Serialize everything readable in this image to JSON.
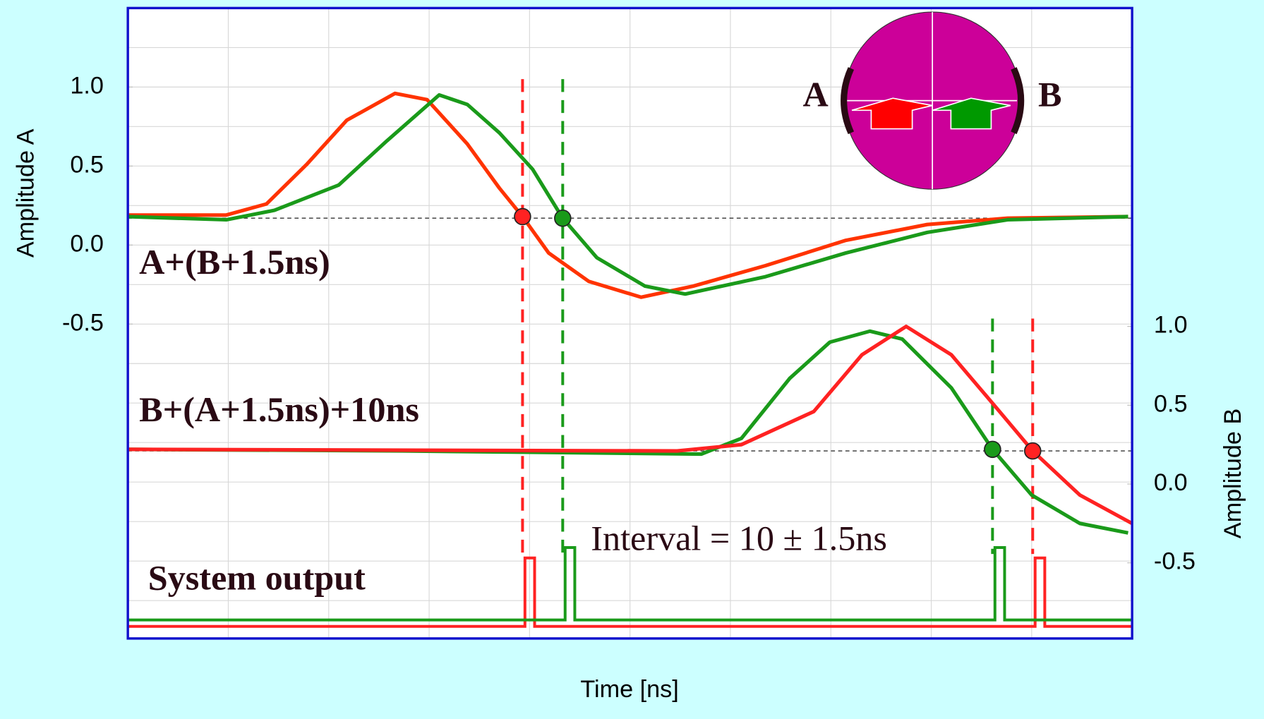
{
  "chart_data": {
    "type": "line",
    "xlabel": "Time [ns]",
    "ylabel": "Amplitude A",
    "y2label": "Amplitude B",
    "xlim": [
      0,
      10
    ],
    "ylim": [
      -2.49,
      1.5
    ],
    "yticks": [
      {
        "value": 1,
        "label": "1.0"
      },
      0.5,
      {
        "value": 0,
        "label": "0.0"
      },
      -0.5
    ],
    "y2lim": [
      -0.98,
      3.02
    ],
    "y2ticks": [
      {
        "value": 1,
        "label": "1.0"
      },
      0.5,
      {
        "value": 0,
        "label": "0.0"
      },
      -0.5
    ],
    "grid": true,
    "series": [
      {
        "color": "#ff3300",
        "x": [
          0,
          0.98,
          1.38,
          1.78,
          2.18,
          2.66,
          2.98,
          3.38,
          3.7,
          3.93,
          4.19,
          4.59,
          5.11,
          5.63,
          6.35,
          7.15,
          7.96,
          8.76,
          9.96
        ],
        "values": [
          0.19,
          0.19,
          0.26,
          0.51,
          0.79,
          0.96,
          0.92,
          0.64,
          0.36,
          0.18,
          -0.05,
          -0.23,
          -0.33,
          -0.26,
          -0.13,
          0.03,
          0.13,
          0.17,
          0.18
        ]
      },
      {
        "color": "#1a9a1a",
        "x": [
          0,
          0.98,
          1.46,
          2.1,
          2.58,
          3.1,
          3.38,
          3.7,
          4.03,
          4.33,
          4.67,
          5.15,
          5.55,
          6.35,
          7.15,
          7.96,
          8.76,
          9.96
        ],
        "values": [
          0.18,
          0.16,
          0.22,
          0.38,
          0.66,
          0.95,
          0.89,
          0.71,
          0.48,
          0.17,
          -0.08,
          -0.26,
          -0.31,
          -0.2,
          -0.05,
          0.08,
          0.16,
          0.18
        ]
      },
      {
        "color": "#1a9a1a",
        "axis": "y2",
        "x": [
          0,
          2.74,
          5.71,
          6.11,
          6.59,
          6.99,
          7.39,
          7.71,
          8.2,
          8.61,
          9.0,
          9.48,
          9.96
        ],
        "values": [
          0.22,
          0.21,
          0.19,
          0.29,
          0.67,
          0.9,
          0.97,
          0.92,
          0.61,
          0.22,
          -0.07,
          -0.25,
          -0.31
        ]
      },
      {
        "color": "#ff2222",
        "axis": "y2",
        "x": [
          0,
          5.47,
          6.11,
          6.83,
          7.31,
          7.75,
          8.2,
          8.68,
          9.01,
          9.48,
          10.0
        ],
        "values": [
          0.22,
          0.21,
          0.25,
          0.46,
          0.82,
          1.0,
          0.82,
          0.46,
          0.21,
          -0.07,
          -0.25
        ]
      }
    ],
    "thresholds": [
      {
        "value": 0.17
      },
      {
        "value": 0.21,
        "axis": "y2"
      }
    ],
    "crossings": [
      {
        "color": "#ff2222",
        "x": 3.93,
        "value": 0.18
      },
      {
        "color": "#1a9a1a",
        "x": 4.33,
        "value": 0.17
      },
      {
        "color": "#1a9a1a",
        "axis": "y2",
        "x": 8.61,
        "value": 0.22
      },
      {
        "color": "#ff2222",
        "axis": "y2",
        "x": 9.01,
        "value": 0.21
      }
    ],
    "annotations": [
      "A+(B+1.5ns)",
      "B+(A+1.5ns)+10ns",
      "System output",
      "Interval = 10 ± 1.5ns",
      "A",
      "B"
    ]
  }
}
